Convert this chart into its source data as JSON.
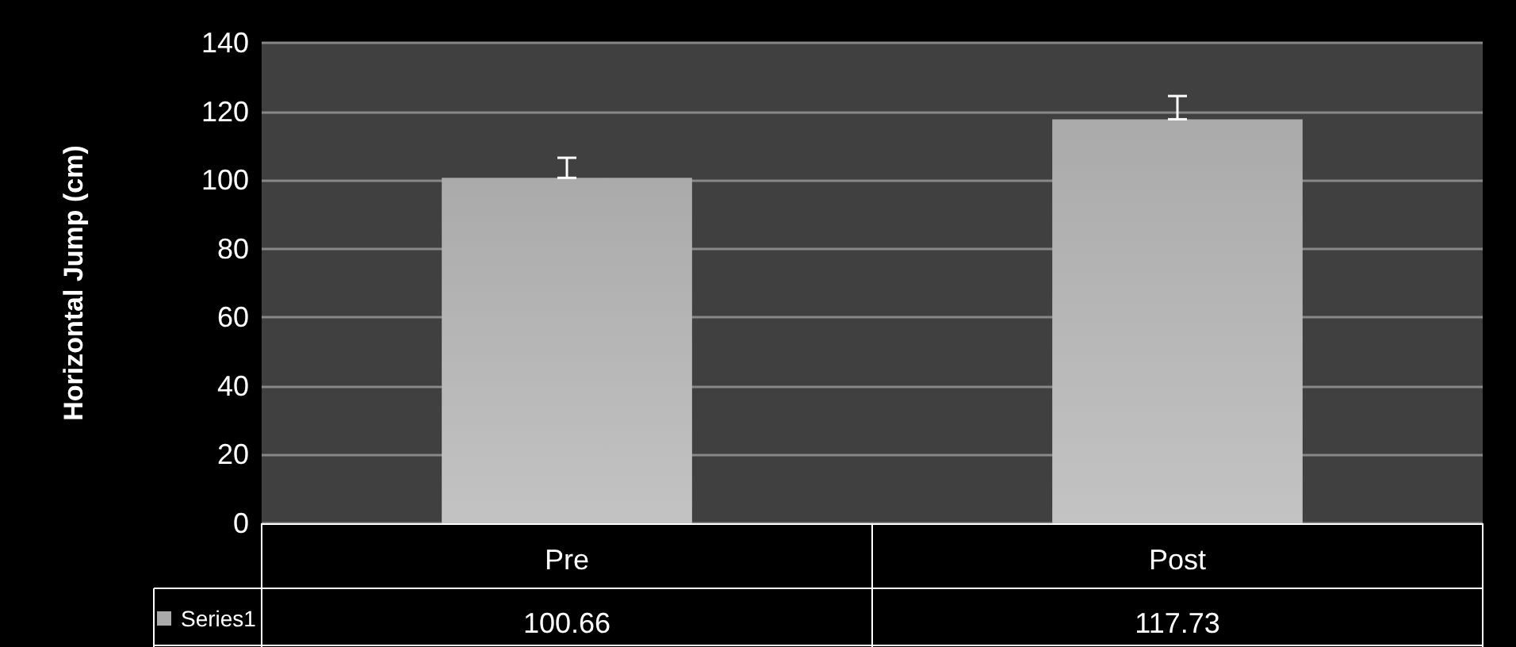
{
  "chart_data": {
    "type": "bar",
    "ylabel": "Horizontal Jump (cm)",
    "categories": [
      "Pre",
      "Post"
    ],
    "series": [
      {
        "name": "Series1",
        "color": "#aaaaaa",
        "values": [
          100.66,
          117.73
        ],
        "errors": [
          [
            100.66,
            106.5
          ],
          [
            117.73,
            124.5
          ]
        ]
      }
    ],
    "ylim": [
      0,
      140
    ],
    "yticks": [
      0,
      20,
      40,
      60,
      80,
      100,
      120,
      140
    ],
    "grid": "y",
    "legend": "bottom left",
    "data_labels": true
  }
}
